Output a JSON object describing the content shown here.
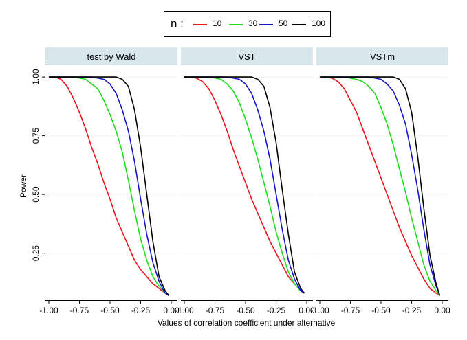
{
  "legend": {
    "title": "n :",
    "items": [
      {
        "label": "10",
        "color": "#e8141a"
      },
      {
        "label": "30",
        "color": "#1ddc1d"
      },
      {
        "label": "50",
        "color": "#1414c8"
      },
      {
        "label": "100",
        "color": "#000000"
      }
    ]
  },
  "chart_data": {
    "type": "line",
    "xlabel": "Values of correlation coefficient under alternative",
    "ylabel": "Power",
    "xlim": [
      -1.0,
      0.0
    ],
    "ylim": [
      0.05,
      1.05
    ],
    "xticks": [
      "-1.00",
      "-0.75",
      "-0.50",
      "-0.25",
      "0.00"
    ],
    "yticks": [
      "0.25",
      "0.50",
      "0.75",
      "1.00"
    ],
    "ytick_values": [
      0.25,
      0.5,
      0.75,
      1.0
    ],
    "xtick_values": [
      -1.0,
      -0.75,
      -0.5,
      -0.25,
      0.0
    ],
    "grid": true,
    "panels": [
      {
        "title": "test by Wald",
        "series": [
          {
            "name": "10",
            "color": "#e8141a",
            "x": [
              -1.0,
              -0.95,
              -0.9,
              -0.85,
              -0.8,
              -0.75,
              -0.7,
              -0.65,
              -0.6,
              -0.55,
              -0.5,
              -0.45,
              -0.4,
              -0.35,
              -0.3,
              -0.25,
              -0.2,
              -0.15,
              -0.1,
              -0.05,
              -0.02
            ],
            "y": [
              1.0,
              1.0,
              0.99,
              0.96,
              0.91,
              0.85,
              0.78,
              0.7,
              0.63,
              0.55,
              0.48,
              0.4,
              0.34,
              0.28,
              0.22,
              0.18,
              0.15,
              0.12,
              0.1,
              0.08,
              0.07
            ]
          },
          {
            "name": "30",
            "color": "#1ddc1d",
            "x": [
              -1.0,
              -0.8,
              -0.7,
              -0.65,
              -0.6,
              -0.55,
              -0.5,
              -0.45,
              -0.4,
              -0.35,
              -0.3,
              -0.25,
              -0.2,
              -0.15,
              -0.1,
              -0.05,
              -0.02
            ],
            "y": [
              1.0,
              1.0,
              0.99,
              0.97,
              0.95,
              0.9,
              0.84,
              0.77,
              0.68,
              0.56,
              0.43,
              0.31,
              0.22,
              0.15,
              0.11,
              0.08,
              0.07
            ]
          },
          {
            "name": "50",
            "color": "#1414c8",
            "x": [
              -1.0,
              -0.65,
              -0.55,
              -0.5,
              -0.45,
              -0.4,
              -0.35,
              -0.3,
              -0.25,
              -0.2,
              -0.15,
              -0.1,
              -0.05,
              -0.02
            ],
            "y": [
              1.0,
              1.0,
              0.99,
              0.97,
              0.93,
              0.86,
              0.77,
              0.64,
              0.48,
              0.33,
              0.21,
              0.13,
              0.08,
              0.07
            ]
          },
          {
            "name": "100",
            "color": "#000000",
            "x": [
              -1.0,
              -0.45,
              -0.4,
              -0.35,
              -0.3,
              -0.25,
              -0.2,
              -0.15,
              -0.1,
              -0.05,
              -0.02
            ],
            "y": [
              1.0,
              1.0,
              0.99,
              0.96,
              0.86,
              0.7,
              0.5,
              0.3,
              0.15,
              0.09,
              0.07
            ]
          }
        ]
      },
      {
        "title": "VST",
        "series": [
          {
            "name": "10",
            "color": "#e8141a",
            "x": [
              -1.0,
              -0.95,
              -0.9,
              -0.85,
              -0.8,
              -0.75,
              -0.7,
              -0.65,
              -0.6,
              -0.55,
              -0.5,
              -0.45,
              -0.4,
              -0.35,
              -0.3,
              -0.25,
              -0.2,
              -0.15,
              -0.1,
              -0.05,
              -0.02
            ],
            "y": [
              1.0,
              1.0,
              0.995,
              0.98,
              0.95,
              0.9,
              0.84,
              0.77,
              0.69,
              0.62,
              0.55,
              0.48,
              0.42,
              0.36,
              0.3,
              0.25,
              0.2,
              0.15,
              0.12,
              0.09,
              0.08
            ]
          },
          {
            "name": "30",
            "color": "#1ddc1d",
            "x": [
              -1.0,
              -0.8,
              -0.7,
              -0.65,
              -0.6,
              -0.55,
              -0.5,
              -0.45,
              -0.4,
              -0.35,
              -0.3,
              -0.25,
              -0.2,
              -0.15,
              -0.1,
              -0.05,
              -0.02
            ],
            "y": [
              1.0,
              1.0,
              0.99,
              0.97,
              0.94,
              0.89,
              0.82,
              0.74,
              0.65,
              0.55,
              0.45,
              0.34,
              0.25,
              0.17,
              0.12,
              0.09,
              0.08
            ]
          },
          {
            "name": "50",
            "color": "#1414c8",
            "x": [
              -1.0,
              -0.65,
              -0.55,
              -0.5,
              -0.45,
              -0.4,
              -0.35,
              -0.3,
              -0.25,
              -0.2,
              -0.15,
              -0.1,
              -0.05,
              -0.02
            ],
            "y": [
              1.0,
              1.0,
              0.99,
              0.97,
              0.93,
              0.86,
              0.77,
              0.65,
              0.5,
              0.35,
              0.22,
              0.14,
              0.09,
              0.08
            ]
          },
          {
            "name": "100",
            "color": "#000000",
            "x": [
              -1.0,
              -0.45,
              -0.4,
              -0.35,
              -0.3,
              -0.25,
              -0.2,
              -0.15,
              -0.1,
              -0.05,
              -0.02
            ],
            "y": [
              1.0,
              1.0,
              0.99,
              0.96,
              0.87,
              0.72,
              0.52,
              0.33,
              0.17,
              0.1,
              0.08
            ]
          }
        ]
      },
      {
        "title": "VSTm",
        "series": [
          {
            "name": "10",
            "color": "#e8141a",
            "x": [
              -1.0,
              -0.95,
              -0.9,
              -0.85,
              -0.8,
              -0.75,
              -0.7,
              -0.65,
              -0.6,
              -0.55,
              -0.5,
              -0.45,
              -0.4,
              -0.35,
              -0.3,
              -0.25,
              -0.2,
              -0.15,
              -0.1,
              -0.05,
              -0.02
            ],
            "y": [
              1.0,
              1.0,
              0.995,
              0.98,
              0.95,
              0.9,
              0.85,
              0.78,
              0.71,
              0.64,
              0.57,
              0.5,
              0.43,
              0.36,
              0.3,
              0.24,
              0.19,
              0.14,
              0.1,
              0.08,
              0.07
            ]
          },
          {
            "name": "30",
            "color": "#1ddc1d",
            "x": [
              -1.0,
              -0.8,
              -0.7,
              -0.65,
              -0.6,
              -0.55,
              -0.5,
              -0.45,
              -0.4,
              -0.35,
              -0.3,
              -0.25,
              -0.2,
              -0.15,
              -0.1,
              -0.05,
              -0.02
            ],
            "y": [
              1.0,
              1.0,
              0.99,
              0.98,
              0.96,
              0.93,
              0.87,
              0.8,
              0.71,
              0.61,
              0.51,
              0.4,
              0.3,
              0.2,
              0.13,
              0.09,
              0.07
            ]
          },
          {
            "name": "50",
            "color": "#1414c8",
            "x": [
              -1.0,
              -0.6,
              -0.5,
              -0.45,
              -0.4,
              -0.35,
              -0.3,
              -0.25,
              -0.2,
              -0.15,
              -0.1,
              -0.05,
              -0.02
            ],
            "y": [
              1.0,
              1.0,
              0.99,
              0.97,
              0.94,
              0.88,
              0.8,
              0.67,
              0.52,
              0.35,
              0.2,
              0.11,
              0.07
            ]
          },
          {
            "name": "100",
            "color": "#000000",
            "x": [
              -1.0,
              -0.4,
              -0.35,
              -0.3,
              -0.25,
              -0.2,
              -0.15,
              -0.1,
              -0.05,
              -0.02
            ],
            "y": [
              1.0,
              1.0,
              0.99,
              0.95,
              0.85,
              0.66,
              0.44,
              0.24,
              0.12,
              0.07
            ]
          }
        ]
      }
    ]
  }
}
